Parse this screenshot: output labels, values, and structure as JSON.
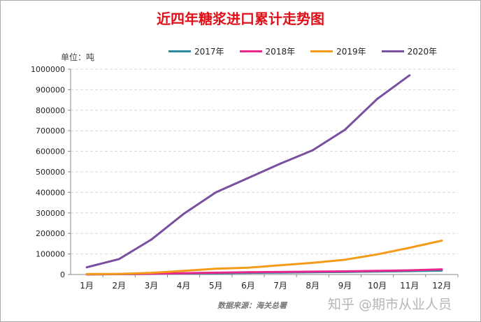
{
  "chart_data": {
    "type": "line",
    "title": "近四年糖浆进口累计走势图",
    "ylabel": "单位：吨",
    "categories": [
      "1月",
      "2月",
      "3月",
      "4月",
      "5月",
      "6月",
      "7月",
      "8月",
      "9月",
      "10月",
      "11月",
      "12月"
    ],
    "ylim": [
      0,
      1000000
    ],
    "yticks": [
      "0",
      "100000",
      "200000",
      "300000",
      "400000",
      "500000",
      "600000",
      "700000",
      "800000",
      "900000",
      "1000000"
    ],
    "grid": true,
    "legend_position": "top",
    "series": [
      {
        "name": "2017年",
        "color": "#2a8a9e",
        "values": [
          500,
          1500,
          3000,
          5000,
          6500,
          8000,
          9500,
          11000,
          12500,
          14500,
          16500,
          19000
        ]
      },
      {
        "name": "2018年",
        "color": "#e8268c",
        "values": [
          800,
          2000,
          4000,
          6500,
          9000,
          11000,
          12500,
          14000,
          15500,
          18000,
          20500,
          25000
        ]
      },
      {
        "name": "2019年",
        "color": "#f59b1a",
        "values": [
          2000,
          3000,
          8000,
          18000,
          28000,
          33000,
          45000,
          57000,
          72000,
          98000,
          130000,
          165000
        ]
      },
      {
        "name": "2020年",
        "color": "#7a4fa0",
        "values": [
          35000,
          75000,
          170000,
          295000,
          400000,
          470000,
          540000,
          605000,
          705000,
          855000,
          970000,
          null
        ]
      }
    ],
    "source": "数据来源：海关总署",
    "watermark": "知乎 @期市从业人员"
  }
}
